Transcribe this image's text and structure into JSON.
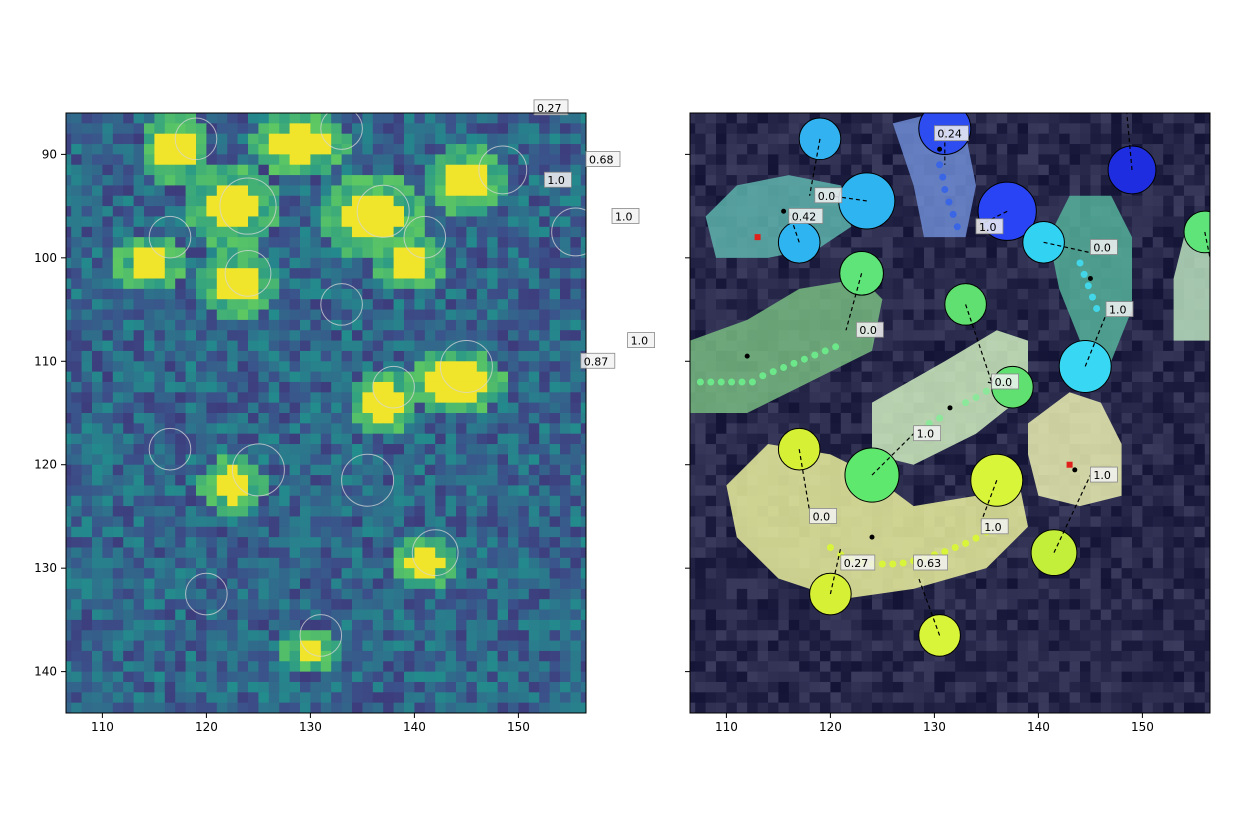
{
  "chart_data": [
    {
      "type": "heatmap",
      "colormap": "viridis",
      "xlim": [
        106.5,
        156.5
      ],
      "ylim": [
        144,
        86
      ],
      "xticks": [
        110,
        120,
        130,
        140,
        150
      ],
      "yticks": [
        90,
        100,
        110,
        120,
        130,
        140
      ],
      "bright_spots": [
        {
          "x": 117,
          "y": 89.5,
          "w": 3,
          "h": 3
        },
        {
          "x": 129,
          "y": 89,
          "w": 5,
          "h": 2.5
        },
        {
          "x": 145,
          "y": 92.5,
          "w": 4,
          "h": 3
        },
        {
          "x": 122.5,
          "y": 95,
          "w": 5,
          "h": 4
        },
        {
          "x": 136,
          "y": 96,
          "w": 6,
          "h": 4
        },
        {
          "x": 114.5,
          "y": 100.5,
          "w": 3,
          "h": 2
        },
        {
          "x": 123,
          "y": 102.5,
          "w": 3.5,
          "h": 3
        },
        {
          "x": 139.5,
          "y": 100.5,
          "w": 3,
          "h": 2
        },
        {
          "x": 144,
          "y": 112,
          "w": 5,
          "h": 3
        },
        {
          "x": 137,
          "y": 114,
          "w": 3,
          "h": 2
        },
        {
          "x": 122.5,
          "y": 122,
          "w": 3,
          "h": 2
        },
        {
          "x": 141,
          "y": 129.5,
          "w": 3,
          "h": 2
        },
        {
          "x": 130,
          "y": 138,
          "w": 2,
          "h": 1
        }
      ],
      "circles": [
        {
          "x": 119,
          "y": 88.5,
          "r": 2
        },
        {
          "x": 133,
          "y": 87.5,
          "r": 2
        },
        {
          "x": 148.5,
          "y": 91.5,
          "r": 2.3
        },
        {
          "x": 124,
          "y": 95,
          "r": 2.7
        },
        {
          "x": 137,
          "y": 95.5,
          "r": 2.5
        },
        {
          "x": 141,
          "y": 98,
          "r": 2
        },
        {
          "x": 116.5,
          "y": 98,
          "r": 2
        },
        {
          "x": 155.5,
          "y": 97.5,
          "r": 2.3
        },
        {
          "x": 124,
          "y": 101.5,
          "r": 2.2
        },
        {
          "x": 133,
          "y": 104.5,
          "r": 2
        },
        {
          "x": 145,
          "y": 110.5,
          "r": 2.5
        },
        {
          "x": 138,
          "y": 112.5,
          "r": 2
        },
        {
          "x": 116.5,
          "y": 118.5,
          "r": 2
        },
        {
          "x": 125,
          "y": 120.5,
          "r": 2.5
        },
        {
          "x": 135.5,
          "y": 121.5,
          "r": 2.5
        },
        {
          "x": 142,
          "y": 128.5,
          "r": 2.2
        },
        {
          "x": 120,
          "y": 132.5,
          "r": 2
        },
        {
          "x": 131,
          "y": 136.5,
          "r": 2
        }
      ],
      "annotations": [
        {
          "text": "0.27",
          "x": 151.5,
          "y": 85.5,
          "box": true
        },
        {
          "text": "1.0",
          "x": 152.5,
          "y": 92.5,
          "box": true
        }
      ]
    },
    {
      "type": "scatter",
      "xlim": [
        106.5,
        156.5
      ],
      "ylim": [
        144,
        86
      ],
      "xticks": [
        110,
        120,
        130,
        140,
        150
      ],
      "yticks": [
        90,
        100,
        110,
        120,
        130,
        140
      ],
      "regions": [
        {
          "name": "teal-left",
          "color": "#5fb8b0",
          "points": [
            [
              108,
              96
            ],
            [
              111,
              93
            ],
            [
              116,
              92
            ],
            [
              121,
              93
            ],
            [
              122,
              97
            ],
            [
              119,
              99
            ],
            [
              114,
              100
            ],
            [
              109,
              100
            ]
          ]
        },
        {
          "name": "blue-top",
          "color": "#6f8fd8",
          "points": [
            [
              126,
              87
            ],
            [
              130,
              86
            ],
            [
              133,
              88
            ],
            [
              134,
              93
            ],
            [
              133,
              98
            ],
            [
              129,
              98
            ],
            [
              128,
              93
            ]
          ]
        },
        {
          "name": "teal-right",
          "color": "#55b69c",
          "points": [
            [
              143,
              94
            ],
            [
              147,
              94
            ],
            [
              149,
              98
            ],
            [
              149,
              105
            ],
            [
              147,
              110
            ],
            [
              144,
              108
            ],
            [
              142,
              103
            ],
            [
              141,
              98
            ]
          ]
        },
        {
          "name": "green-right-edge",
          "color": "#bfe8c2",
          "points": [
            [
              154,
              98
            ],
            [
              156.5,
              98
            ],
            [
              156.5,
              108
            ],
            [
              153,
              108
            ],
            [
              153,
              102
            ]
          ]
        },
        {
          "name": "green-diag",
          "color": "#79c081",
          "points": [
            [
              106.5,
              108
            ],
            [
              112,
              106
            ],
            [
              117,
              103
            ],
            [
              123,
              102
            ],
            [
              125,
              104
            ],
            [
              124,
              109
            ],
            [
              118,
              112
            ],
            [
              112,
              115
            ],
            [
              106.5,
              115
            ]
          ]
        },
        {
          "name": "lightgreen",
          "color": "#d6f5c5",
          "points": [
            [
              124,
              114
            ],
            [
              131,
              110
            ],
            [
              136,
              107
            ],
            [
              139,
              108
            ],
            [
              139,
              113
            ],
            [
              134,
              117
            ],
            [
              128,
              120
            ],
            [
              124,
              119
            ]
          ]
        },
        {
          "name": "yellow-c",
          "color": "#f2f7a0",
          "points": [
            [
              110,
              122
            ],
            [
              114,
              118
            ],
            [
              120,
              119
            ],
            [
              124,
              121
            ],
            [
              128,
              124
            ],
            [
              134,
              123
            ],
            [
              138,
              121
            ],
            [
              139,
              126
            ],
            [
              135,
              130
            ],
            [
              128,
              132
            ],
            [
              121,
              133
            ],
            [
              115,
              131
            ],
            [
              111,
              127
            ]
          ]
        },
        {
          "name": "paleyellow",
          "color": "#f3f7b5",
          "points": [
            [
              139,
              116
            ],
            [
              143,
              113
            ],
            [
              146,
              114
            ],
            [
              148,
              118
            ],
            [
              148,
              123
            ],
            [
              144,
              124
            ],
            [
              140,
              123
            ],
            [
              139,
              119
            ]
          ]
        }
      ],
      "circles": [
        {
          "x": 119,
          "y": 88.5,
          "r": 2,
          "color": "#32b2f0"
        },
        {
          "x": 123.5,
          "y": 94.5,
          "r": 2.7,
          "color": "#2fb4f2"
        },
        {
          "x": 117,
          "y": 98.5,
          "r": 2,
          "color": "#2fb4f2"
        },
        {
          "x": 131,
          "y": 87.5,
          "r": 2.5,
          "color": "#2e4df0"
        },
        {
          "x": 137,
          "y": 95.5,
          "r": 2.8,
          "color": "#2844f5"
        },
        {
          "x": 149,
          "y": 91.5,
          "r": 2.3,
          "color": "#1e2de0"
        },
        {
          "x": 140.5,
          "y": 98.5,
          "r": 2,
          "color": "#32d2f3"
        },
        {
          "x": 144.5,
          "y": 110.5,
          "r": 2.5,
          "color": "#38d8f5"
        },
        {
          "x": 123,
          "y": 101.5,
          "r": 2.1,
          "color": "#5fe47a"
        },
        {
          "x": 133,
          "y": 104.5,
          "r": 2,
          "color": "#5fe070"
        },
        {
          "x": 137.5,
          "y": 112.5,
          "r": 2,
          "color": "#5fe070"
        },
        {
          "x": 124,
          "y": 121,
          "r": 2.6,
          "color": "#5ee86e"
        },
        {
          "x": 156,
          "y": 97.5,
          "r": 2,
          "color": "#5fe47a"
        },
        {
          "x": 117,
          "y": 118.5,
          "r": 2,
          "color": "#d6f135"
        },
        {
          "x": 136,
          "y": 121.5,
          "r": 2.5,
          "color": "#d9f53a"
        },
        {
          "x": 141.5,
          "y": 128.5,
          "r": 2.2,
          "color": "#c3ef3a"
        },
        {
          "x": 120,
          "y": 132.5,
          "r": 2,
          "color": "#d6f135"
        },
        {
          "x": 130.5,
          "y": 136.5,
          "r": 2,
          "color": "#d9f53a"
        }
      ],
      "lines": [
        {
          "x1": 119,
          "y1": 88.5,
          "x2": 118,
          "y2": 94
        },
        {
          "x1": 117,
          "y1": 98.5,
          "x2": 116,
          "y2": 95.5
        },
        {
          "x1": 123.5,
          "y1": 94.5,
          "x2": 120,
          "y2": 94
        },
        {
          "x1": 137,
          "y1": 95.5,
          "x2": 134,
          "y2": 97
        },
        {
          "x1": 131,
          "y1": 87.5,
          "x2": 131,
          "y2": 91
        },
        {
          "x1": 149,
          "y1": 91.5,
          "x2": 148.5,
          "y2": 86
        },
        {
          "x1": 140.5,
          "y1": 98.5,
          "x2": 145,
          "y2": 99.5
        },
        {
          "x1": 144.5,
          "y1": 110.5,
          "x2": 146.5,
          "y2": 105.5
        },
        {
          "x1": 123,
          "y1": 101.5,
          "x2": 121.5,
          "y2": 107
        },
        {
          "x1": 133,
          "y1": 104.5,
          "x2": 135.5,
          "y2": 112
        },
        {
          "x1": 137.5,
          "y1": 112.5,
          "x2": 135,
          "y2": 112
        },
        {
          "x1": 124,
          "y1": 121,
          "x2": 128,
          "y2": 117
        },
        {
          "x1": 156,
          "y1": 97.5,
          "x2": 156.5,
          "y2": 100
        },
        {
          "x1": 117,
          "y1": 118.5,
          "x2": 118,
          "y2": 124.5
        },
        {
          "x1": 136,
          "y1": 121.5,
          "x2": 134.5,
          "y2": 125.5
        },
        {
          "x1": 141.5,
          "y1": 128.5,
          "x2": 145,
          "y2": 121
        },
        {
          "x1": 120,
          "y1": 132.5,
          "x2": 121,
          "y2": 128
        },
        {
          "x1": 130.5,
          "y1": 136.5,
          "x2": 128.5,
          "y2": 131
        }
      ],
      "black_dots": [
        [
          115.5,
          95.5
        ],
        [
          130.5,
          89.5
        ],
        [
          145,
          102
        ],
        [
          112,
          109.5
        ],
        [
          131.5,
          114.5
        ],
        [
          124,
          127
        ],
        [
          143.5,
          120.5
        ]
      ],
      "red_dots": [
        [
          113,
          98
        ],
        [
          143,
          120
        ]
      ],
      "dot_chains": [
        {
          "color": "#3a66e6",
          "points": [
            [
              130.5,
              91
            ],
            [
              130.8,
              92.2
            ],
            [
              131,
              93.4
            ],
            [
              131.4,
              94.6
            ],
            [
              131.8,
              95.8
            ],
            [
              132.2,
              97
            ]
          ]
        },
        {
          "color": "#42d6e8",
          "points": [
            [
              144,
              100.5
            ],
            [
              144.4,
              101.6
            ],
            [
              144.8,
              102.7
            ],
            [
              145.2,
              103.8
            ],
            [
              145.6,
              104.9
            ]
          ]
        },
        {
          "color": "#6ce78a",
          "points": [
            [
              107.5,
              112
            ],
            [
              108.5,
              112
            ],
            [
              109.5,
              112
            ],
            [
              110.5,
              112
            ],
            [
              111.5,
              112
            ],
            [
              112.5,
              112
            ],
            [
              113.5,
              111.4
            ],
            [
              114.5,
              111
            ],
            [
              115.5,
              110.6
            ],
            [
              116.5,
              110.2
            ],
            [
              117.5,
              109.8
            ],
            [
              118.5,
              109.4
            ],
            [
              119.5,
              109
            ],
            [
              120.5,
              108.6
            ]
          ]
        },
        {
          "color": "#8be89a",
          "points": [
            [
              133,
              114
            ],
            [
              134,
              113.5
            ],
            [
              135,
              112.9
            ],
            [
              136,
              112.4
            ],
            [
              130.5,
              115.5
            ],
            [
              129.5,
              116
            ]
          ]
        },
        {
          "color": "#d9f53a",
          "points": [
            [
              120,
              128
            ],
            [
              121,
              128.7
            ],
            [
              122,
              129.1
            ],
            [
              123,
              129.4
            ],
            [
              124,
              129.6
            ],
            [
              125,
              129.6
            ],
            [
              126,
              129.6
            ],
            [
              127,
              129.5
            ],
            [
              128,
              129.3
            ],
            [
              129,
              129
            ],
            [
              130,
              128.7
            ],
            [
              131,
              128.4
            ],
            [
              132,
              128
            ],
            [
              133,
              127.6
            ],
            [
              134,
              127.1
            ],
            [
              135,
              126.5
            ]
          ]
        }
      ],
      "annotations": [
        {
          "text": "0.24",
          "x": 130,
          "y": 88,
          "box": true
        },
        {
          "text": "0.0",
          "x": 118.5,
          "y": 94,
          "box": true
        },
        {
          "text": "0.42",
          "x": 116,
          "y": 96,
          "box": true
        },
        {
          "text": "1.0",
          "x": 134,
          "y": 97,
          "box": true
        },
        {
          "text": "0.0",
          "x": 145,
          "y": 99,
          "box": true
        },
        {
          "text": "1.0",
          "x": 146.5,
          "y": 105,
          "box": true
        },
        {
          "text": "0.0",
          "x": 122.5,
          "y": 107,
          "box": true
        },
        {
          "text": "0.0",
          "x": 135.5,
          "y": 112,
          "box": true
        },
        {
          "text": "1.0",
          "x": 128,
          "y": 117,
          "box": true
        },
        {
          "text": "1.0",
          "x": 145,
          "y": 121,
          "box": true
        },
        {
          "text": "0.0",
          "x": 118,
          "y": 125,
          "box": true
        },
        {
          "text": "1.0",
          "x": 134.5,
          "y": 126,
          "box": true
        },
        {
          "text": "0.27",
          "x": 121,
          "y": 129.5,
          "box": true
        },
        {
          "text": "0.63",
          "x": 128,
          "y": 129.5,
          "box": true
        },
        {
          "text": "0.68",
          "x": 96.5,
          "y": 90.5,
          "box": true
        },
        {
          "text": "1.0",
          "x": 99,
          "y": 96,
          "box": true
        },
        {
          "text": "0.87",
          "x": 96,
          "y": 110,
          "box": true
        },
        {
          "text": "1.0",
          "x": 100.5,
          "y": 108,
          "box": true
        }
      ]
    }
  ]
}
